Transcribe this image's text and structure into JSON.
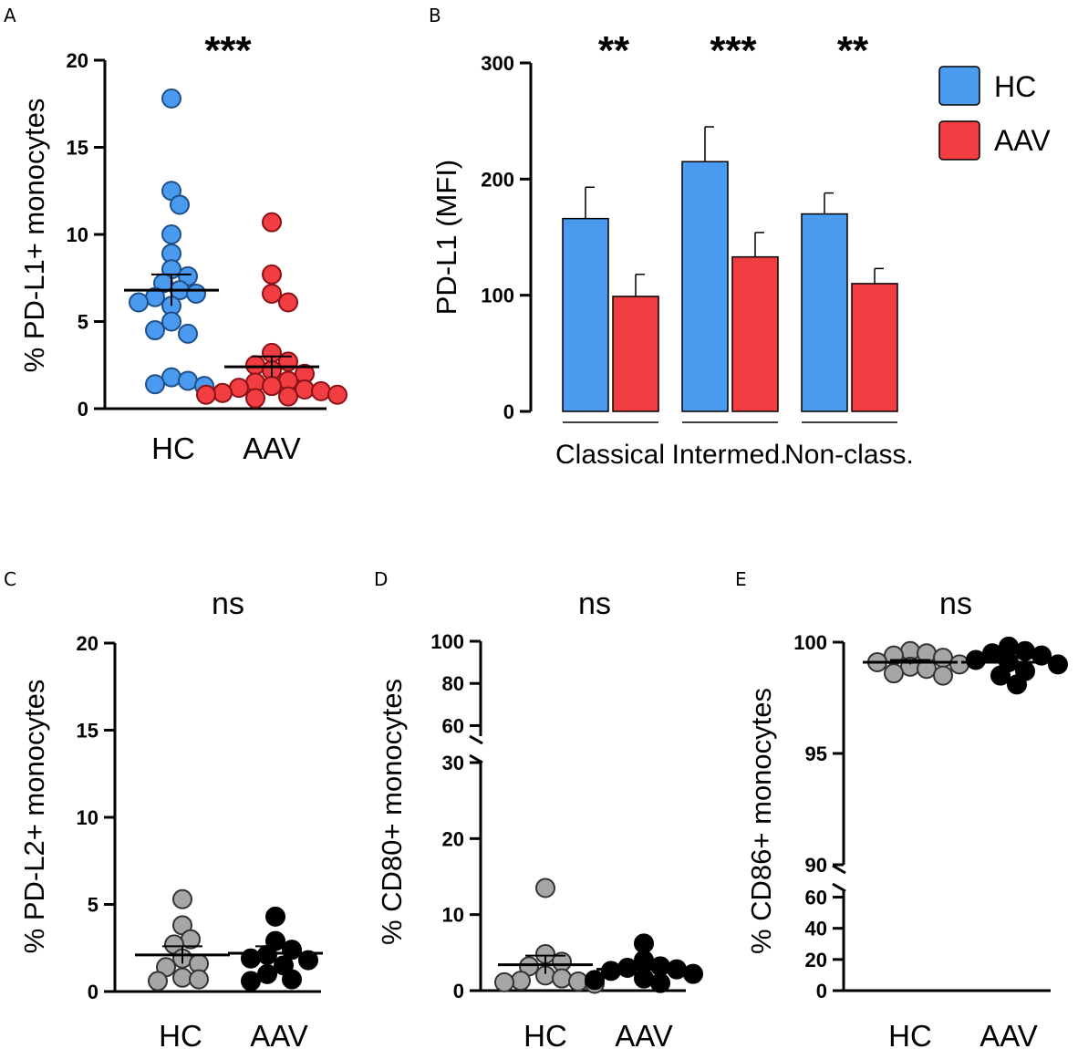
{
  "colors": {
    "hc_blue": "#4a9bef",
    "aav_red": "#f23d42",
    "hc_gray": "#a6a6a6",
    "aav_black": "#000000"
  },
  "chart_data": [
    {
      "panel": "A",
      "type": "scatter",
      "ylabel": "% PD-L1+ monocytes",
      "ylim": [
        0,
        20
      ],
      "yticks": [
        0,
        5,
        10,
        15,
        20
      ],
      "categories": [
        "HC",
        "AAV"
      ],
      "significance": "***",
      "series": [
        {
          "name": "HC",
          "values": [
            17.8,
            12.5,
            11.7,
            10.0,
            8.9,
            8.0,
            7.6,
            7.2,
            6.8,
            6.6,
            6.4,
            6.1,
            5.9,
            5.0,
            4.3,
            4.5,
            1.8,
            1.6,
            1.4,
            1.3
          ],
          "mean": 6.8,
          "sem": 0.9
        },
        {
          "name": "AAV",
          "values": [
            10.7,
            7.7,
            6.6,
            6.1,
            3.2,
            2.7,
            2.5,
            2.2,
            2.0,
            1.6,
            1.5,
            1.3,
            1.2,
            1.1,
            1.0,
            0.9,
            0.8,
            0.8,
            0.7,
            0.6
          ],
          "mean": 2.4,
          "sem": 0.6
        }
      ]
    },
    {
      "panel": "B",
      "type": "bar",
      "ylabel": "PD-L1 (MFI)",
      "ylim": [
        0,
        300
      ],
      "yticks": [
        0,
        100,
        200,
        300
      ],
      "categories": [
        "Classical",
        "Intermed.",
        "Non-class."
      ],
      "significance": [
        "**",
        "***",
        "**"
      ],
      "series": [
        {
          "name": "HC",
          "values": [
            166,
            215,
            170
          ],
          "errors": [
            27,
            30,
            18
          ]
        },
        {
          "name": "AAV",
          "values": [
            99,
            133,
            110
          ],
          "errors": [
            19,
            21,
            13
          ]
        }
      ],
      "legend": [
        "HC",
        "AAV"
      ]
    },
    {
      "panel": "C",
      "type": "scatter",
      "ylabel": "% PD-L2+ monocytes",
      "ylim": [
        0,
        20
      ],
      "yticks": [
        0,
        5,
        10,
        15,
        20
      ],
      "categories": [
        "HC",
        "AAV"
      ],
      "significance": "ns",
      "series": [
        {
          "name": "HC",
          "values": [
            5.3,
            3.8,
            3.0,
            2.7,
            1.9,
            1.6,
            1.4,
            0.8,
            0.7,
            0.6
          ],
          "mean": 2.1,
          "sem": 0.5
        },
        {
          "name": "AAV",
          "values": [
            4.3,
            2.9,
            2.4,
            2.1,
            1.9,
            1.8,
            1.5,
            1.0,
            0.7,
            0.6
          ],
          "mean": 2.2,
          "sem": 0.4
        }
      ]
    },
    {
      "panel": "D",
      "type": "scatter",
      "ylabel": "% CD80+ monocytes",
      "ylim": [
        0,
        100
      ],
      "yticks_lower": [
        0,
        10,
        20,
        30
      ],
      "yticks_upper": [
        60,
        80,
        100
      ],
      "axis_break": [
        30,
        55
      ],
      "categories": [
        "HC",
        "AAV"
      ],
      "significance": "ns",
      "series": [
        {
          "name": "HC",
          "values": [
            13.5,
            4.8,
            3.8,
            3.2,
            2.0,
            1.6,
            1.3,
            1.2,
            1.1,
            0.9
          ],
          "mean": 3.4,
          "sem": 1.2
        },
        {
          "name": "AAV",
          "values": [
            6.2,
            4.0,
            3.2,
            3.0,
            2.8,
            2.6,
            2.2,
            1.6,
            1.4,
            1.0
          ],
          "mean": 2.8,
          "sem": 0.5
        }
      ]
    },
    {
      "panel": "E",
      "type": "scatter",
      "ylabel": "% CD86+ monocytes",
      "ylim": [
        0,
        100
      ],
      "yticks_lower": [
        0,
        20,
        40,
        60
      ],
      "yticks_upper": [
        90,
        95,
        100
      ],
      "axis_break": [
        65,
        90
      ],
      "categories": [
        "HC",
        "AAV"
      ],
      "significance": "ns",
      "series": [
        {
          "name": "HC",
          "values": [
            99.6,
            99.5,
            99.4,
            99.3,
            99.1,
            99.0,
            98.9,
            98.8,
            98.6,
            98.5
          ],
          "mean": 99.1,
          "sem": 0.1
        },
        {
          "name": "AAV",
          "values": [
            99.8,
            99.6,
            99.5,
            99.4,
            99.2,
            99.1,
            99.0,
            98.7,
            98.5,
            98.1
          ],
          "mean": 99.1,
          "sem": 0.2
        }
      ]
    }
  ]
}
